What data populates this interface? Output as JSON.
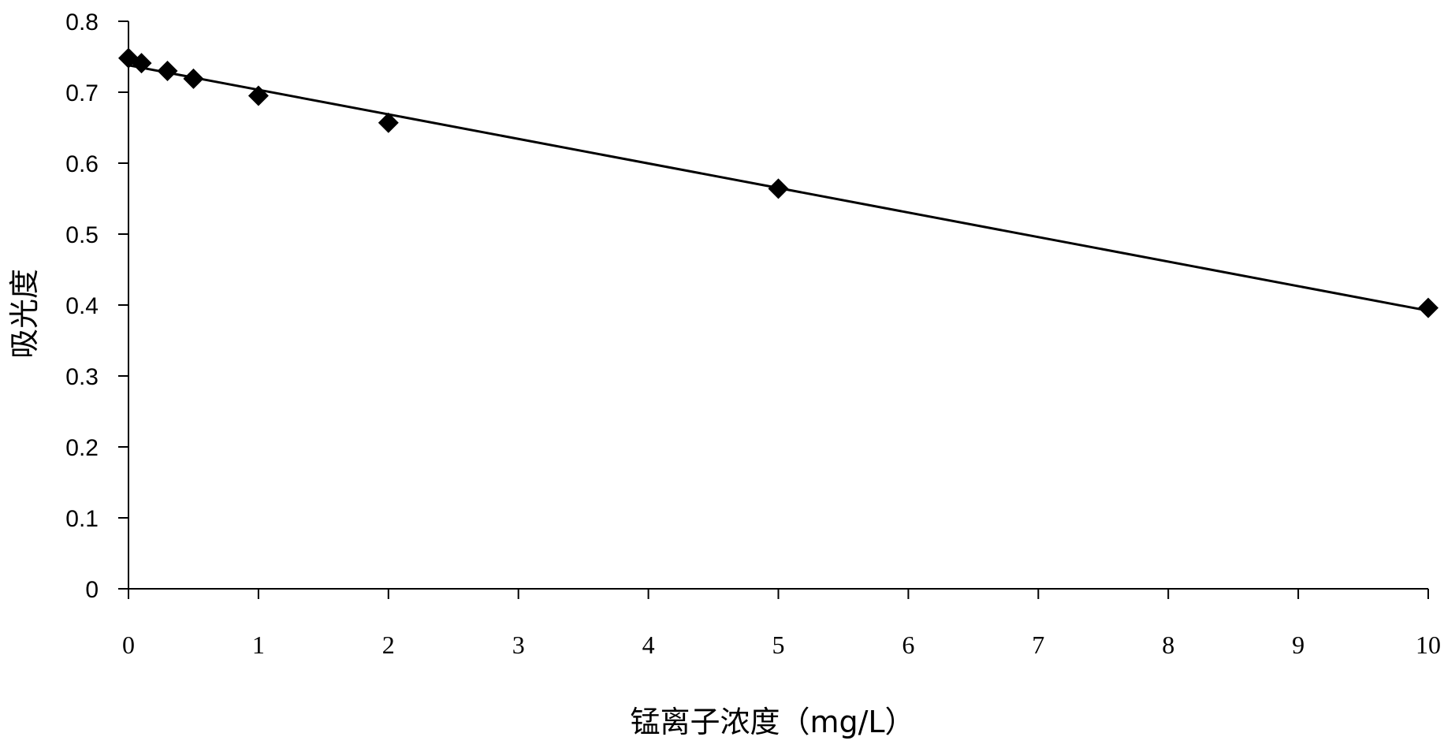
{
  "chart_data": {
    "type": "scatter",
    "title": "",
    "xlabel": "锰离子浓度（mg/L）",
    "ylabel": "吸光度",
    "xlim": [
      0,
      10
    ],
    "ylim": [
      0,
      0.8
    ],
    "x_ticks": [
      "0",
      "1",
      "2",
      "3",
      "4",
      "5",
      "6",
      "7",
      "8",
      "9",
      "10"
    ],
    "y_ticks": [
      "0",
      "0.1",
      "0.2",
      "0.3",
      "0.4",
      "0.5",
      "0.6",
      "0.7",
      "0.8"
    ],
    "grid": false,
    "legend": "none",
    "marker": "diamond",
    "series": [
      {
        "x": [
          0,
          0.1,
          0.3,
          0.5,
          1,
          2,
          5,
          10
        ],
        "y": [
          0.748,
          0.741,
          0.73,
          0.719,
          0.695,
          0.657,
          0.564,
          0.396
        ]
      }
    ],
    "trendline": {
      "type": "linear",
      "x": [
        0,
        10
      ],
      "y": [
        0.738,
        0.392
      ]
    }
  },
  "colors": {
    "axis": "#000000",
    "marker": "#000000",
    "line": "#000000",
    "background": "#ffffff"
  }
}
